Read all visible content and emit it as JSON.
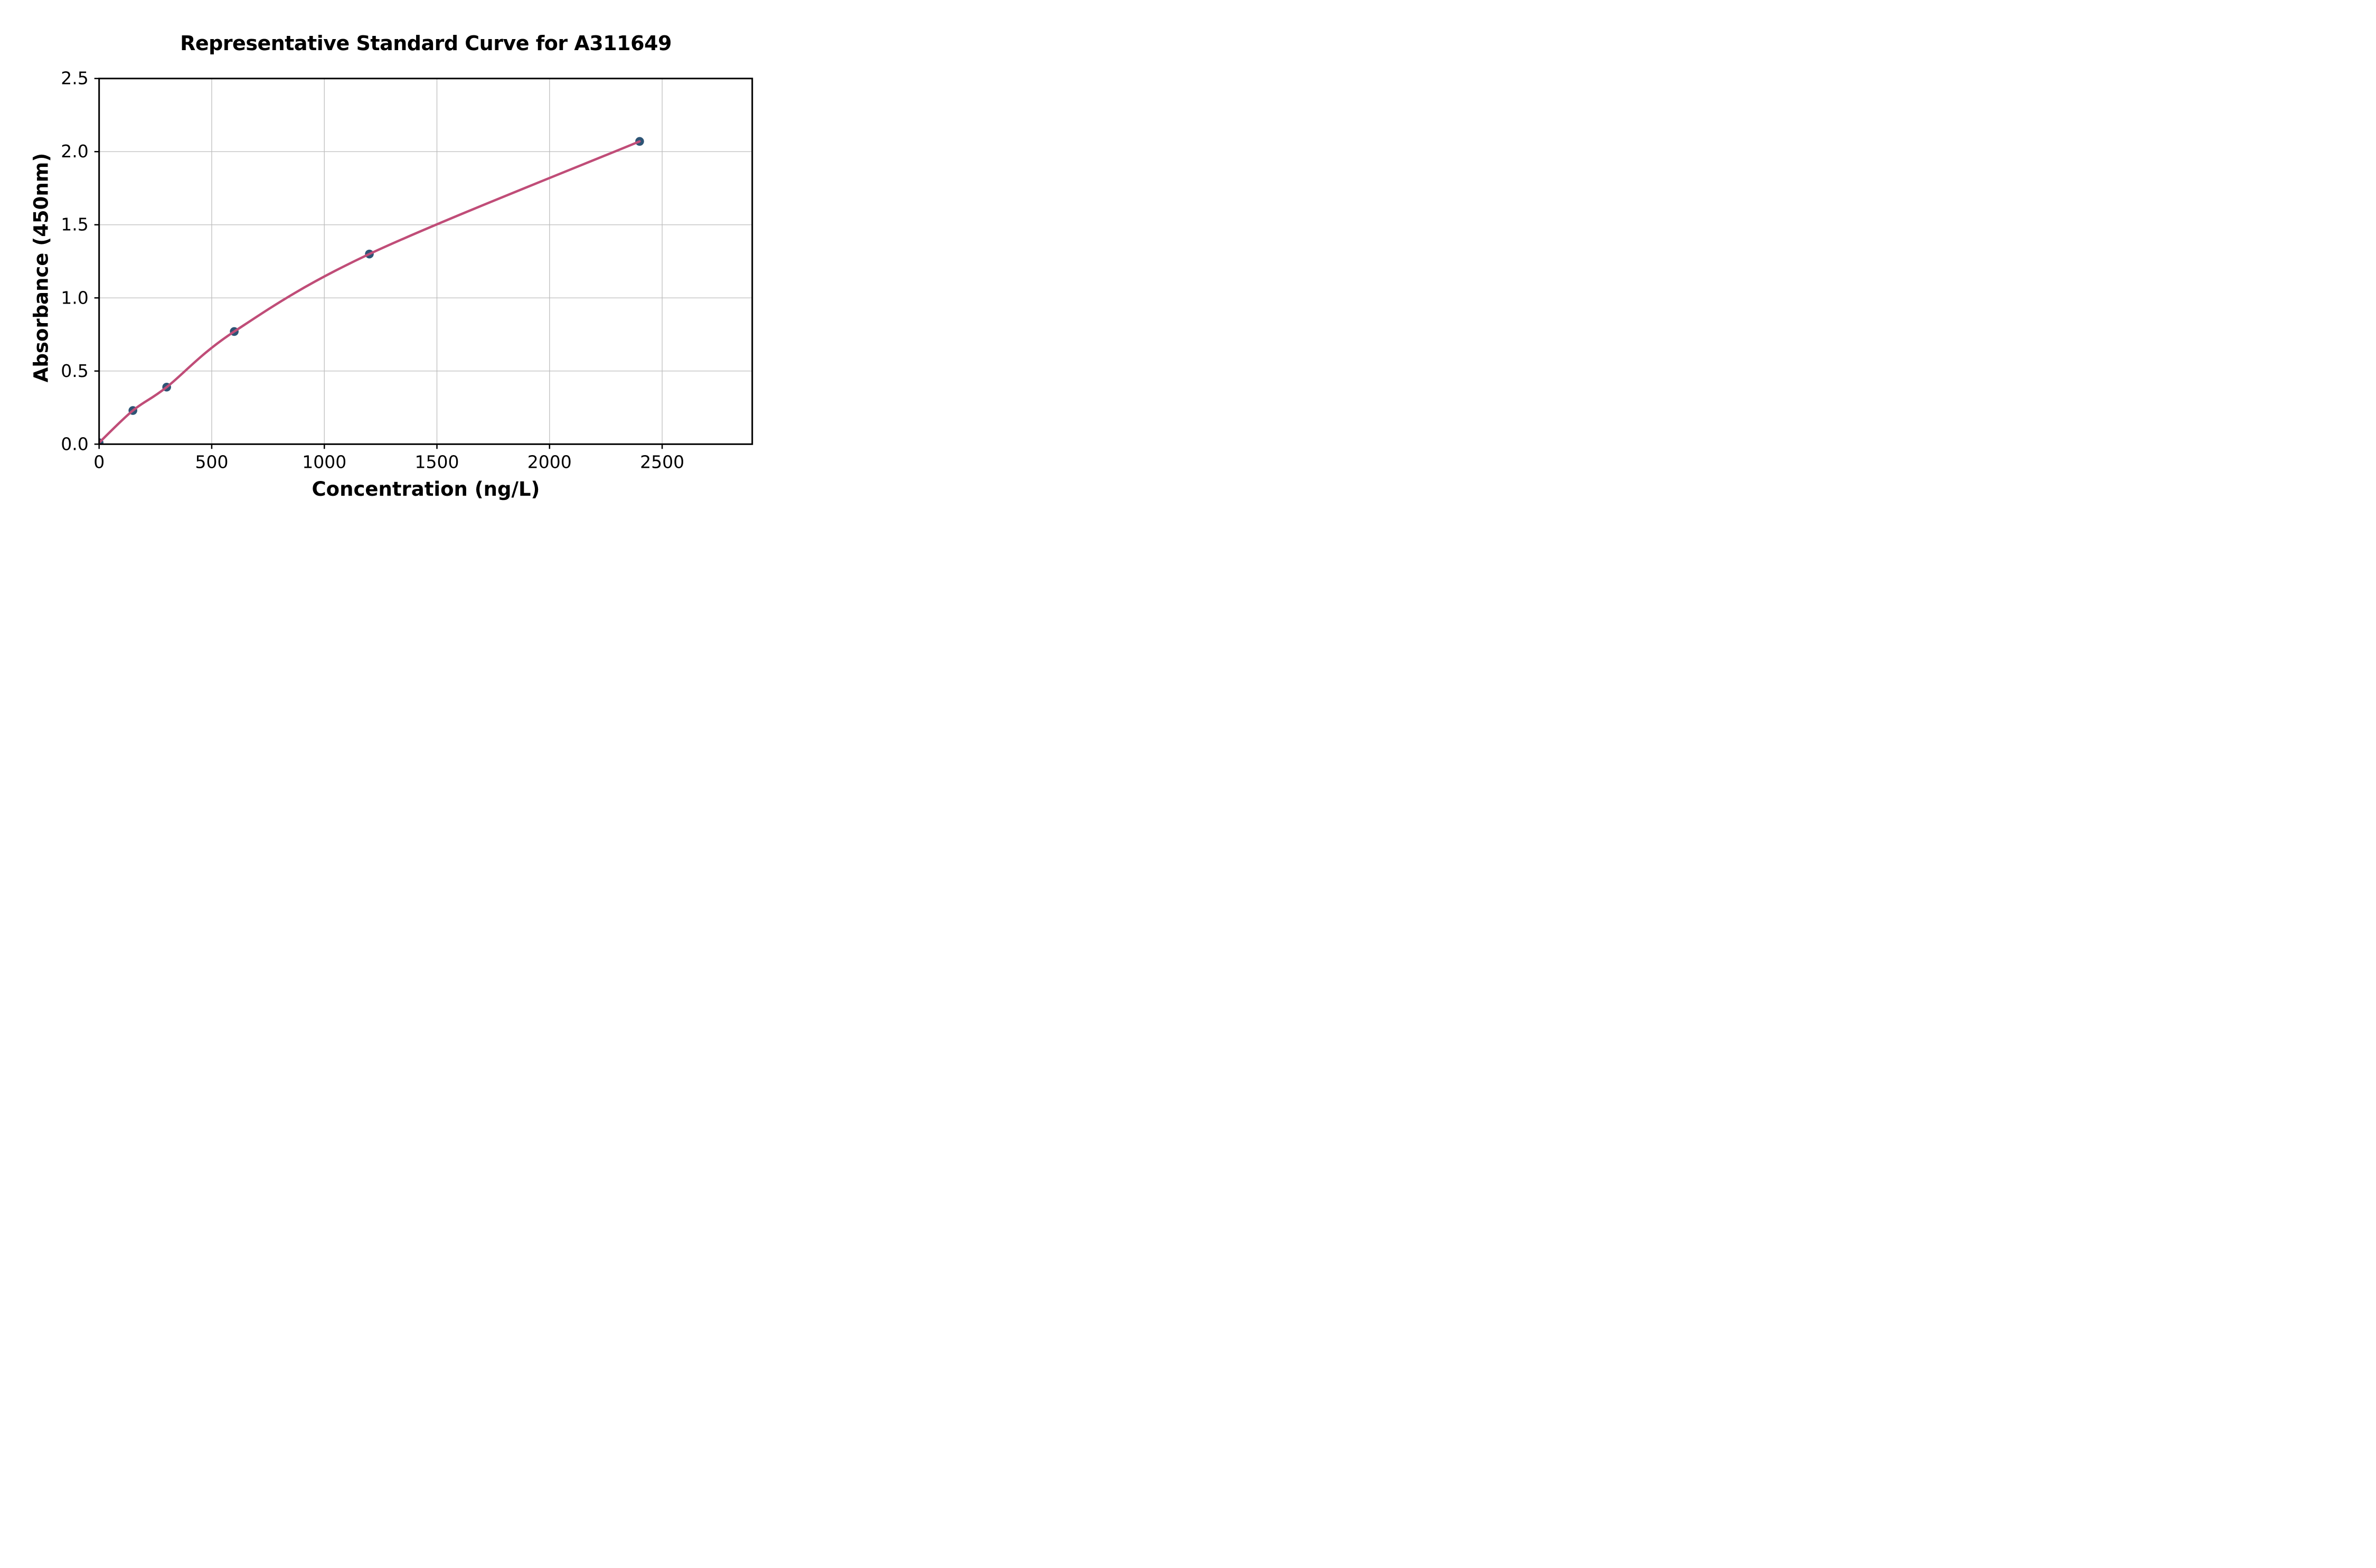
{
  "chart_data": {
    "type": "scatter",
    "title": "Representative Standard Curve for A311649",
    "xlabel": "Concentration (ng/L)",
    "ylabel": "Absorbance (450nm)",
    "points": [
      {
        "x": 0,
        "y": 0.01
      },
      {
        "x": 150,
        "y": 0.23
      },
      {
        "x": 300,
        "y": 0.39
      },
      {
        "x": 600,
        "y": 0.77
      },
      {
        "x": 1200,
        "y": 1.3
      },
      {
        "x": 2400,
        "y": 2.07
      }
    ],
    "fit_curve": {
      "description": "smooth saturating (4PL-style) fit drawn through all points, starting at origin and ending at the last point",
      "drawn_above_points": true
    },
    "xlim": [
      0,
      2900
    ],
    "ylim": [
      0,
      2.5
    ],
    "xticks": [
      0,
      500,
      1000,
      1500,
      2000,
      2500
    ],
    "xtick_labels": [
      "0",
      "500",
      "1000",
      "1500",
      "2000",
      "2500"
    ],
    "yticks": [
      0,
      0.5,
      1.0,
      1.5,
      2.0,
      2.5
    ],
    "ytick_labels": [
      "0.0",
      "0.5",
      "1.0",
      "1.5",
      "2.0",
      "2.5"
    ],
    "grid": true,
    "legend": "none",
    "colors": {
      "marker": "#2d5475",
      "curve": "#c04d78",
      "grid": "#bdbdbd",
      "axis": "#000000",
      "text": "#000000",
      "background": "#ffffff"
    }
  }
}
